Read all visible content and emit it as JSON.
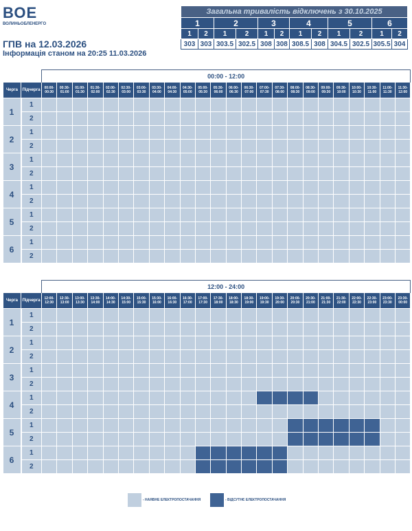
{
  "logo": {
    "main": "ВОЕ",
    "sub": "ВОЛИНЬОБЛЕНЕРГО"
  },
  "title": "ГПВ на 12.03.2026",
  "subtitle": "Інформація станом на 20:25 11.03.2026",
  "summary": {
    "header": "Загальна тривалість відключень з 30.10.2025",
    "queues": [
      "1",
      "2",
      "3",
      "4",
      "5",
      "6"
    ],
    "subqueues": [
      "1",
      "2"
    ],
    "values": [
      "303",
      "303",
      "303.5",
      "302.5",
      "308",
      "308",
      "308.5",
      "308",
      "304.5",
      "302.5",
      "305.5",
      "304"
    ]
  },
  "table_headers": {
    "queue": "Черга",
    "subqueue": "Підчерга"
  },
  "halves": [
    {
      "label": "00:00 - 12:00",
      "slots": [
        [
          "00:00-",
          "00:30"
        ],
        [
          "00:30-",
          "01:00"
        ],
        [
          "01:00-",
          "01:30"
        ],
        [
          "01:30-",
          "02:00"
        ],
        [
          "02:00-",
          "02:30"
        ],
        [
          "02:30-",
          "03:00"
        ],
        [
          "03:00-",
          "03:30"
        ],
        [
          "03:30-",
          "04:00"
        ],
        [
          "04:00-",
          "04:30"
        ],
        [
          "04:30-",
          "05:00"
        ],
        [
          "05:00-",
          "05:30"
        ],
        [
          "05:30-",
          "06:00"
        ],
        [
          "06:00-",
          "06:30"
        ],
        [
          "06:30-",
          "07:00"
        ],
        [
          "07:00-",
          "07:30"
        ],
        [
          "07:30-",
          "08:00"
        ],
        [
          "08:00-",
          "08:30"
        ],
        [
          "08:30-",
          "09:00"
        ],
        [
          "09:00-",
          "09:30"
        ],
        [
          "09:30-",
          "10:00"
        ],
        [
          "10:00-",
          "10:30"
        ],
        [
          "10:30-",
          "11:00"
        ],
        [
          "11:00-",
          "11:30"
        ],
        [
          "11:30-",
          "12:00"
        ]
      ],
      "rows": [
        {
          "queue": "1",
          "sub": "1",
          "off": []
        },
        {
          "queue": "1",
          "sub": "2",
          "off": []
        },
        {
          "queue": "2",
          "sub": "1",
          "off": []
        },
        {
          "queue": "2",
          "sub": "2",
          "off": []
        },
        {
          "queue": "3",
          "sub": "1",
          "off": []
        },
        {
          "queue": "3",
          "sub": "2",
          "off": []
        },
        {
          "queue": "4",
          "sub": "1",
          "off": []
        },
        {
          "queue": "4",
          "sub": "2",
          "off": []
        },
        {
          "queue": "5",
          "sub": "1",
          "off": []
        },
        {
          "queue": "5",
          "sub": "2",
          "off": []
        },
        {
          "queue": "6",
          "sub": "1",
          "off": []
        },
        {
          "queue": "6",
          "sub": "2",
          "off": []
        }
      ]
    },
    {
      "label": "12:00 - 24:00",
      "slots": [
        [
          "12:00-",
          "12:30"
        ],
        [
          "12:30-",
          "13:00"
        ],
        [
          "13:00-",
          "13:30"
        ],
        [
          "13:30-",
          "14:00"
        ],
        [
          "14:00-",
          "14:30"
        ],
        [
          "14:30-",
          "15:00"
        ],
        [
          "15:00-",
          "15:30"
        ],
        [
          "15:30-",
          "16:00"
        ],
        [
          "16:00-",
          "16:30"
        ],
        [
          "16:30-",
          "17:00"
        ],
        [
          "17:00-",
          "17:30"
        ],
        [
          "17:30-",
          "18:00"
        ],
        [
          "18:00-",
          "18:30"
        ],
        [
          "18:30-",
          "19:00"
        ],
        [
          "19:00-",
          "19:30"
        ],
        [
          "19:30-",
          "20:00"
        ],
        [
          "20:00-",
          "20:30"
        ],
        [
          "20:30-",
          "21:00"
        ],
        [
          "21:00-",
          "21:30"
        ],
        [
          "21:30-",
          "22:00"
        ],
        [
          "22:00-",
          "22:30"
        ],
        [
          "22:30-",
          "23:00"
        ],
        [
          "23:00-",
          "23:30"
        ],
        [
          "23:30-",
          "00:00"
        ]
      ],
      "rows": [
        {
          "queue": "1",
          "sub": "1",
          "off": []
        },
        {
          "queue": "1",
          "sub": "2",
          "off": []
        },
        {
          "queue": "2",
          "sub": "1",
          "off": []
        },
        {
          "queue": "2",
          "sub": "2",
          "off": []
        },
        {
          "queue": "3",
          "sub": "1",
          "off": []
        },
        {
          "queue": "3",
          "sub": "2",
          "off": []
        },
        {
          "queue": "4",
          "sub": "1",
          "off": [
            "19:00-19:30",
            "19:30-20:00",
            "20:00-20:30",
            "20:30-21:00"
          ]
        },
        {
          "queue": "4",
          "sub": "2",
          "off": []
        },
        {
          "queue": "5",
          "sub": "1",
          "off": [
            "20:00-20:30",
            "20:30-21:00",
            "21:00-21:30",
            "21:30-22:00",
            "22:00-22:30",
            "22:30-23:00"
          ]
        },
        {
          "queue": "5",
          "sub": "2",
          "off": [
            "20:00-20:30",
            "20:30-21:00",
            "21:00-21:30",
            "21:30-22:00",
            "22:00-22:30",
            "22:30-23:00"
          ]
        },
        {
          "queue": "6",
          "sub": "1",
          "off": [
            "17:00-17:30",
            "17:30-18:00",
            "18:00-18:30",
            "18:30-19:00",
            "19:00-19:30",
            "19:30-20:00"
          ]
        },
        {
          "queue": "6",
          "sub": "2",
          "off": [
            "17:00-17:30",
            "17:30-18:00",
            "18:00-18:30",
            "18:30-19:00",
            "19:00-19:30",
            "19:30-20:00"
          ]
        }
      ]
    }
  ],
  "legend": [
    {
      "label": "- НАЯВНЕ ЕЛЕКТРОПОСТАЧАННЯ",
      "color": "#c0cfdf"
    },
    {
      "label": "- ВІДСУТНЄ ЕЛЕКТРОПОСТАЧАННЯ",
      "color": "#3f6394"
    }
  ]
}
